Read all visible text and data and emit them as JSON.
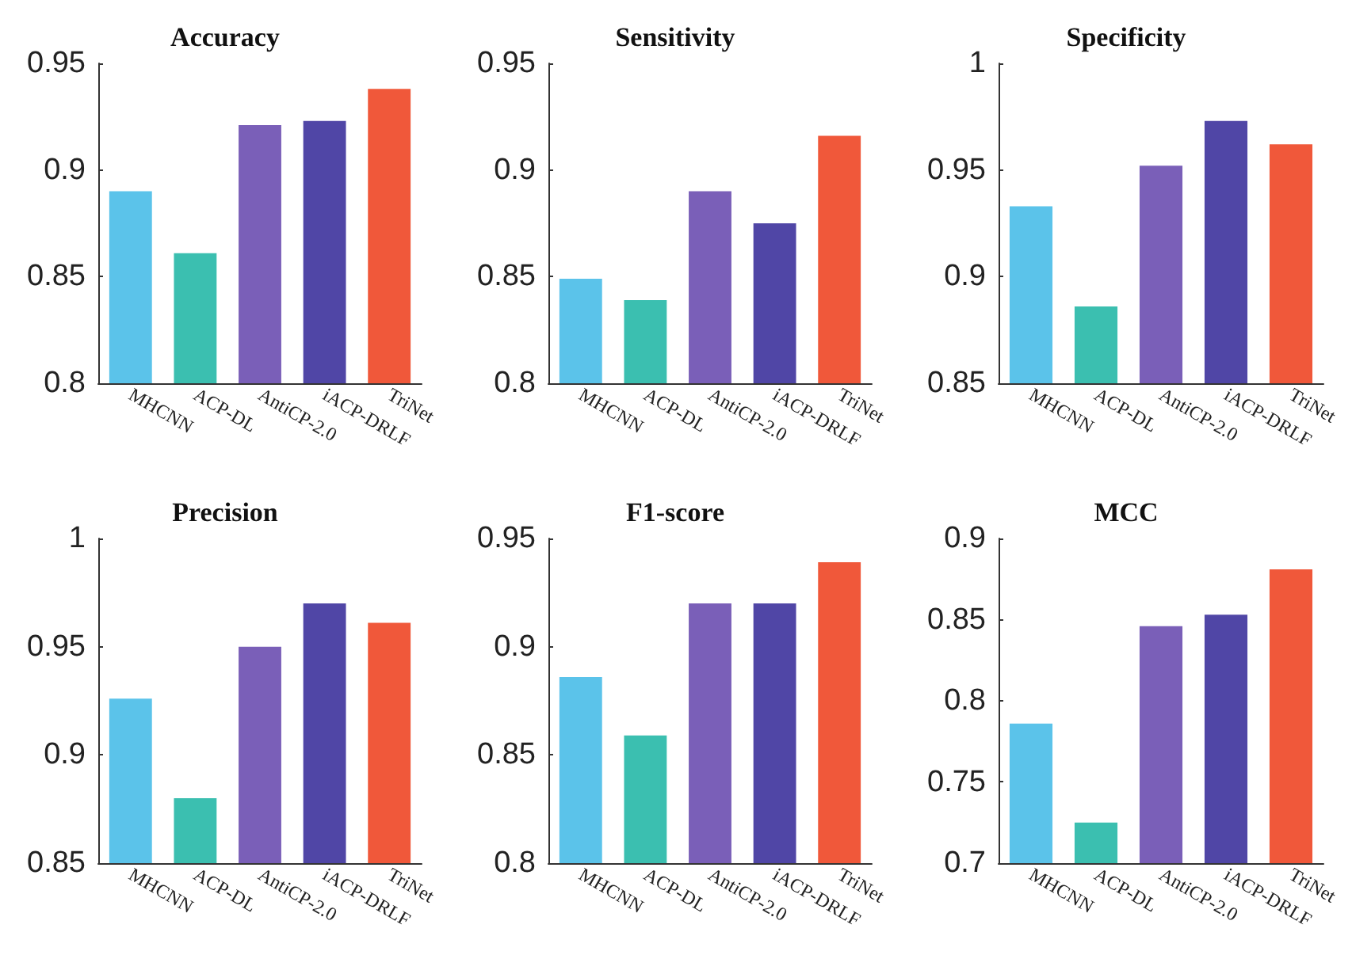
{
  "chart_data": [
    {
      "type": "bar",
      "title": "Accuracy",
      "categories": [
        "MHCNN",
        "ACP-DL",
        "AntiCP-2.0",
        "iACP-DRLF",
        "TriNet"
      ],
      "values": [
        0.89,
        0.861,
        0.921,
        0.923,
        0.938
      ],
      "colors": [
        "#5bc3ea",
        "#3bbfb0",
        "#7a5fb8",
        "#5046a6",
        "#f0583a"
      ],
      "ylim": [
        0.8,
        0.95
      ],
      "yticks": [
        0.8,
        0.85,
        0.9,
        0.95
      ]
    },
    {
      "type": "bar",
      "title": "Sensitivity",
      "categories": [
        "MHCNN",
        "ACP-DL",
        "AntiCP-2.0",
        "iACP-DRLF",
        "TriNet"
      ],
      "values": [
        0.849,
        0.839,
        0.89,
        0.875,
        0.916
      ],
      "colors": [
        "#5bc3ea",
        "#3bbfb0",
        "#7a5fb8",
        "#5046a6",
        "#f0583a"
      ],
      "ylim": [
        0.8,
        0.95
      ],
      "yticks": [
        0.8,
        0.85,
        0.9,
        0.95
      ]
    },
    {
      "type": "bar",
      "title": "Specificity",
      "categories": [
        "MHCNN",
        "ACP-DL",
        "AntiCP-2.0",
        "iACP-DRLF",
        "TriNet"
      ],
      "values": [
        0.933,
        0.886,
        0.952,
        0.973,
        0.962
      ],
      "colors": [
        "#5bc3ea",
        "#3bbfb0",
        "#7a5fb8",
        "#5046a6",
        "#f0583a"
      ],
      "ylim": [
        0.85,
        1
      ],
      "yticks": [
        0.85,
        0.9,
        0.95,
        1
      ]
    },
    {
      "type": "bar",
      "title": "Precision",
      "categories": [
        "MHCNN",
        "ACP-DL",
        "AntiCP-2.0",
        "iACP-DRLF",
        "TriNet"
      ],
      "values": [
        0.926,
        0.88,
        0.95,
        0.97,
        0.961
      ],
      "colors": [
        "#5bc3ea",
        "#3bbfb0",
        "#7a5fb8",
        "#5046a6",
        "#f0583a"
      ],
      "ylim": [
        0.85,
        1
      ],
      "yticks": [
        0.85,
        0.9,
        0.95,
        1
      ]
    },
    {
      "type": "bar",
      "title": "F1-score",
      "categories": [
        "MHCNN",
        "ACP-DL",
        "AntiCP-2.0",
        "iACP-DRLF",
        "TriNet"
      ],
      "values": [
        0.886,
        0.859,
        0.92,
        0.92,
        0.939
      ],
      "colors": [
        "#5bc3ea",
        "#3bbfb0",
        "#7a5fb8",
        "#5046a6",
        "#f0583a"
      ],
      "ylim": [
        0.8,
        0.95
      ],
      "yticks": [
        0.8,
        0.85,
        0.9,
        0.95
      ]
    },
    {
      "type": "bar",
      "title": "MCC",
      "categories": [
        "MHCNN",
        "ACP-DL",
        "AntiCP-2.0",
        "iACP-DRLF",
        "TriNet"
      ],
      "values": [
        0.786,
        0.725,
        0.846,
        0.853,
        0.881
      ],
      "colors": [
        "#5bc3ea",
        "#3bbfb0",
        "#7a5fb8",
        "#5046a6",
        "#f0583a"
      ],
      "ylim": [
        0.7,
        0.9
      ],
      "yticks": [
        0.7,
        0.75,
        0.8,
        0.85,
        0.9
      ]
    }
  ]
}
